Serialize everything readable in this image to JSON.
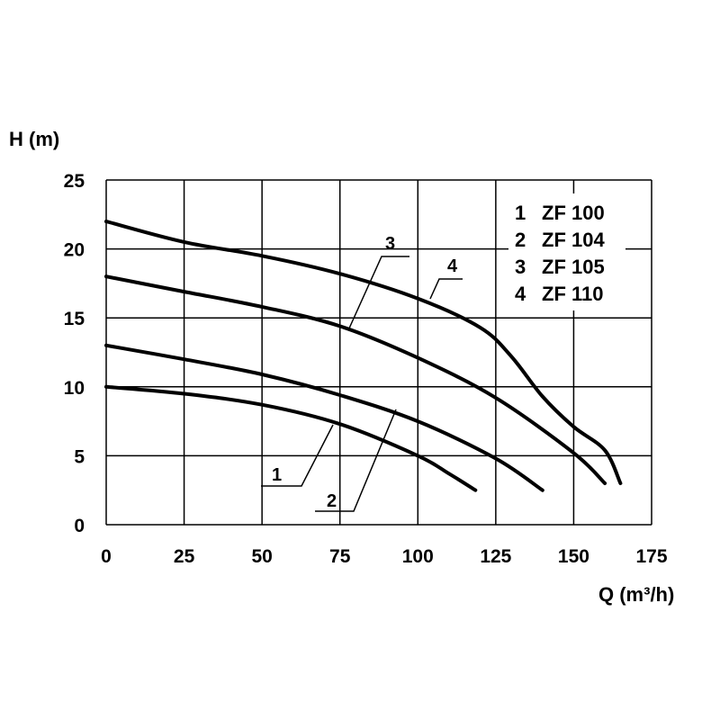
{
  "chart_data": {
    "type": "line",
    "xlabel": "Q (m³/h)",
    "ylabel": "H (m)",
    "xlim": [
      0,
      175
    ],
    "ylim": [
      0,
      25
    ],
    "xticks": [
      0,
      25,
      50,
      75,
      100,
      125,
      150,
      175
    ],
    "yticks": [
      0,
      5,
      10,
      15,
      20,
      25
    ],
    "grid": true,
    "legend_position": "top-right",
    "legend": [
      {
        "id": "1",
        "label": "ZF 100"
      },
      {
        "id": "2",
        "label": "ZF 104"
      },
      {
        "id": "3",
        "label": "ZF 105"
      },
      {
        "id": "4",
        "label": "ZF 110"
      }
    ],
    "series": [
      {
        "name": "1",
        "points": [
          [
            0,
            10.0
          ],
          [
            25,
            9.5
          ],
          [
            50,
            8.7
          ],
          [
            75,
            7.3
          ],
          [
            100,
            5.0
          ],
          [
            110,
            3.7
          ],
          [
            118.5,
            2.5
          ]
        ]
      },
      {
        "name": "2",
        "points": [
          [
            0,
            13.0
          ],
          [
            25,
            12.0
          ],
          [
            50,
            10.9
          ],
          [
            75,
            9.4
          ],
          [
            100,
            7.5
          ],
          [
            125,
            4.8
          ],
          [
            140,
            2.5
          ]
        ]
      },
      {
        "name": "3",
        "points": [
          [
            0,
            18.0
          ],
          [
            25,
            16.9
          ],
          [
            50,
            15.8
          ],
          [
            75,
            14.4
          ],
          [
            100,
            12.1
          ],
          [
            125,
            9.2
          ],
          [
            150,
            5.2
          ],
          [
            160,
            3.0
          ]
        ]
      },
      {
        "name": "4",
        "points": [
          [
            0,
            22.0
          ],
          [
            25,
            20.5
          ],
          [
            50,
            19.5
          ],
          [
            75,
            18.2
          ],
          [
            100,
            16.4
          ],
          [
            120,
            14.3
          ],
          [
            130,
            12.2
          ],
          [
            140,
            9.3
          ],
          [
            150,
            7.1
          ],
          [
            160,
            5.4
          ],
          [
            165,
            3.0
          ]
        ]
      }
    ]
  }
}
